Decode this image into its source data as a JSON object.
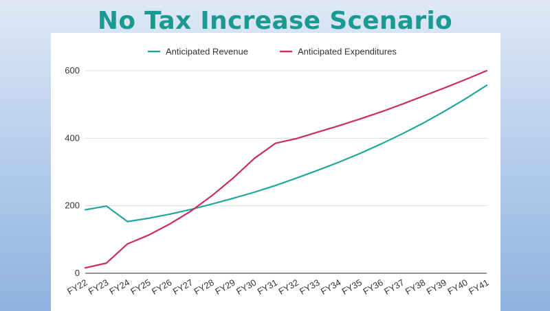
{
  "slide": {
    "title": "No Tax Increase Scenario",
    "title_color": "#1a9a90"
  },
  "chart_data": {
    "type": "line",
    "title": "",
    "xlabel": "",
    "ylabel": "",
    "categories": [
      "FY22",
      "FY23",
      "FY24",
      "FY25",
      "FY26",
      "FY27",
      "FY28",
      "FY29",
      "FY30",
      "FY31",
      "FY32",
      "FY33",
      "FY34",
      "FY35",
      "FY36",
      "FY37",
      "FY38",
      "FY39",
      "FY40",
      "FY41"
    ],
    "series": [
      {
        "name": "Anticipated Revenue",
        "color": "#1fa79b",
        "values": [
          188,
          199,
          153,
          163,
          175,
          189,
          205,
          222,
          240,
          260,
          282,
          305,
          329,
          355,
          383,
          413,
          445,
          480,
          517,
          557
        ]
      },
      {
        "name": "Anticipated Expenditures",
        "color": "#cc2a67",
        "values": [
          16,
          30,
          87,
          113,
          146,
          184,
          230,
          282,
          340,
          385,
          399,
          418,
          437,
          457,
          478,
          501,
          525,
          549,
          574,
          600
        ]
      }
    ],
    "ylim": [
      0,
      600
    ],
    "yticks": [
      0,
      200,
      400,
      600
    ],
    "grid": true,
    "legend_position": "top-center",
    "gridline_color": "#d9d9d9"
  }
}
